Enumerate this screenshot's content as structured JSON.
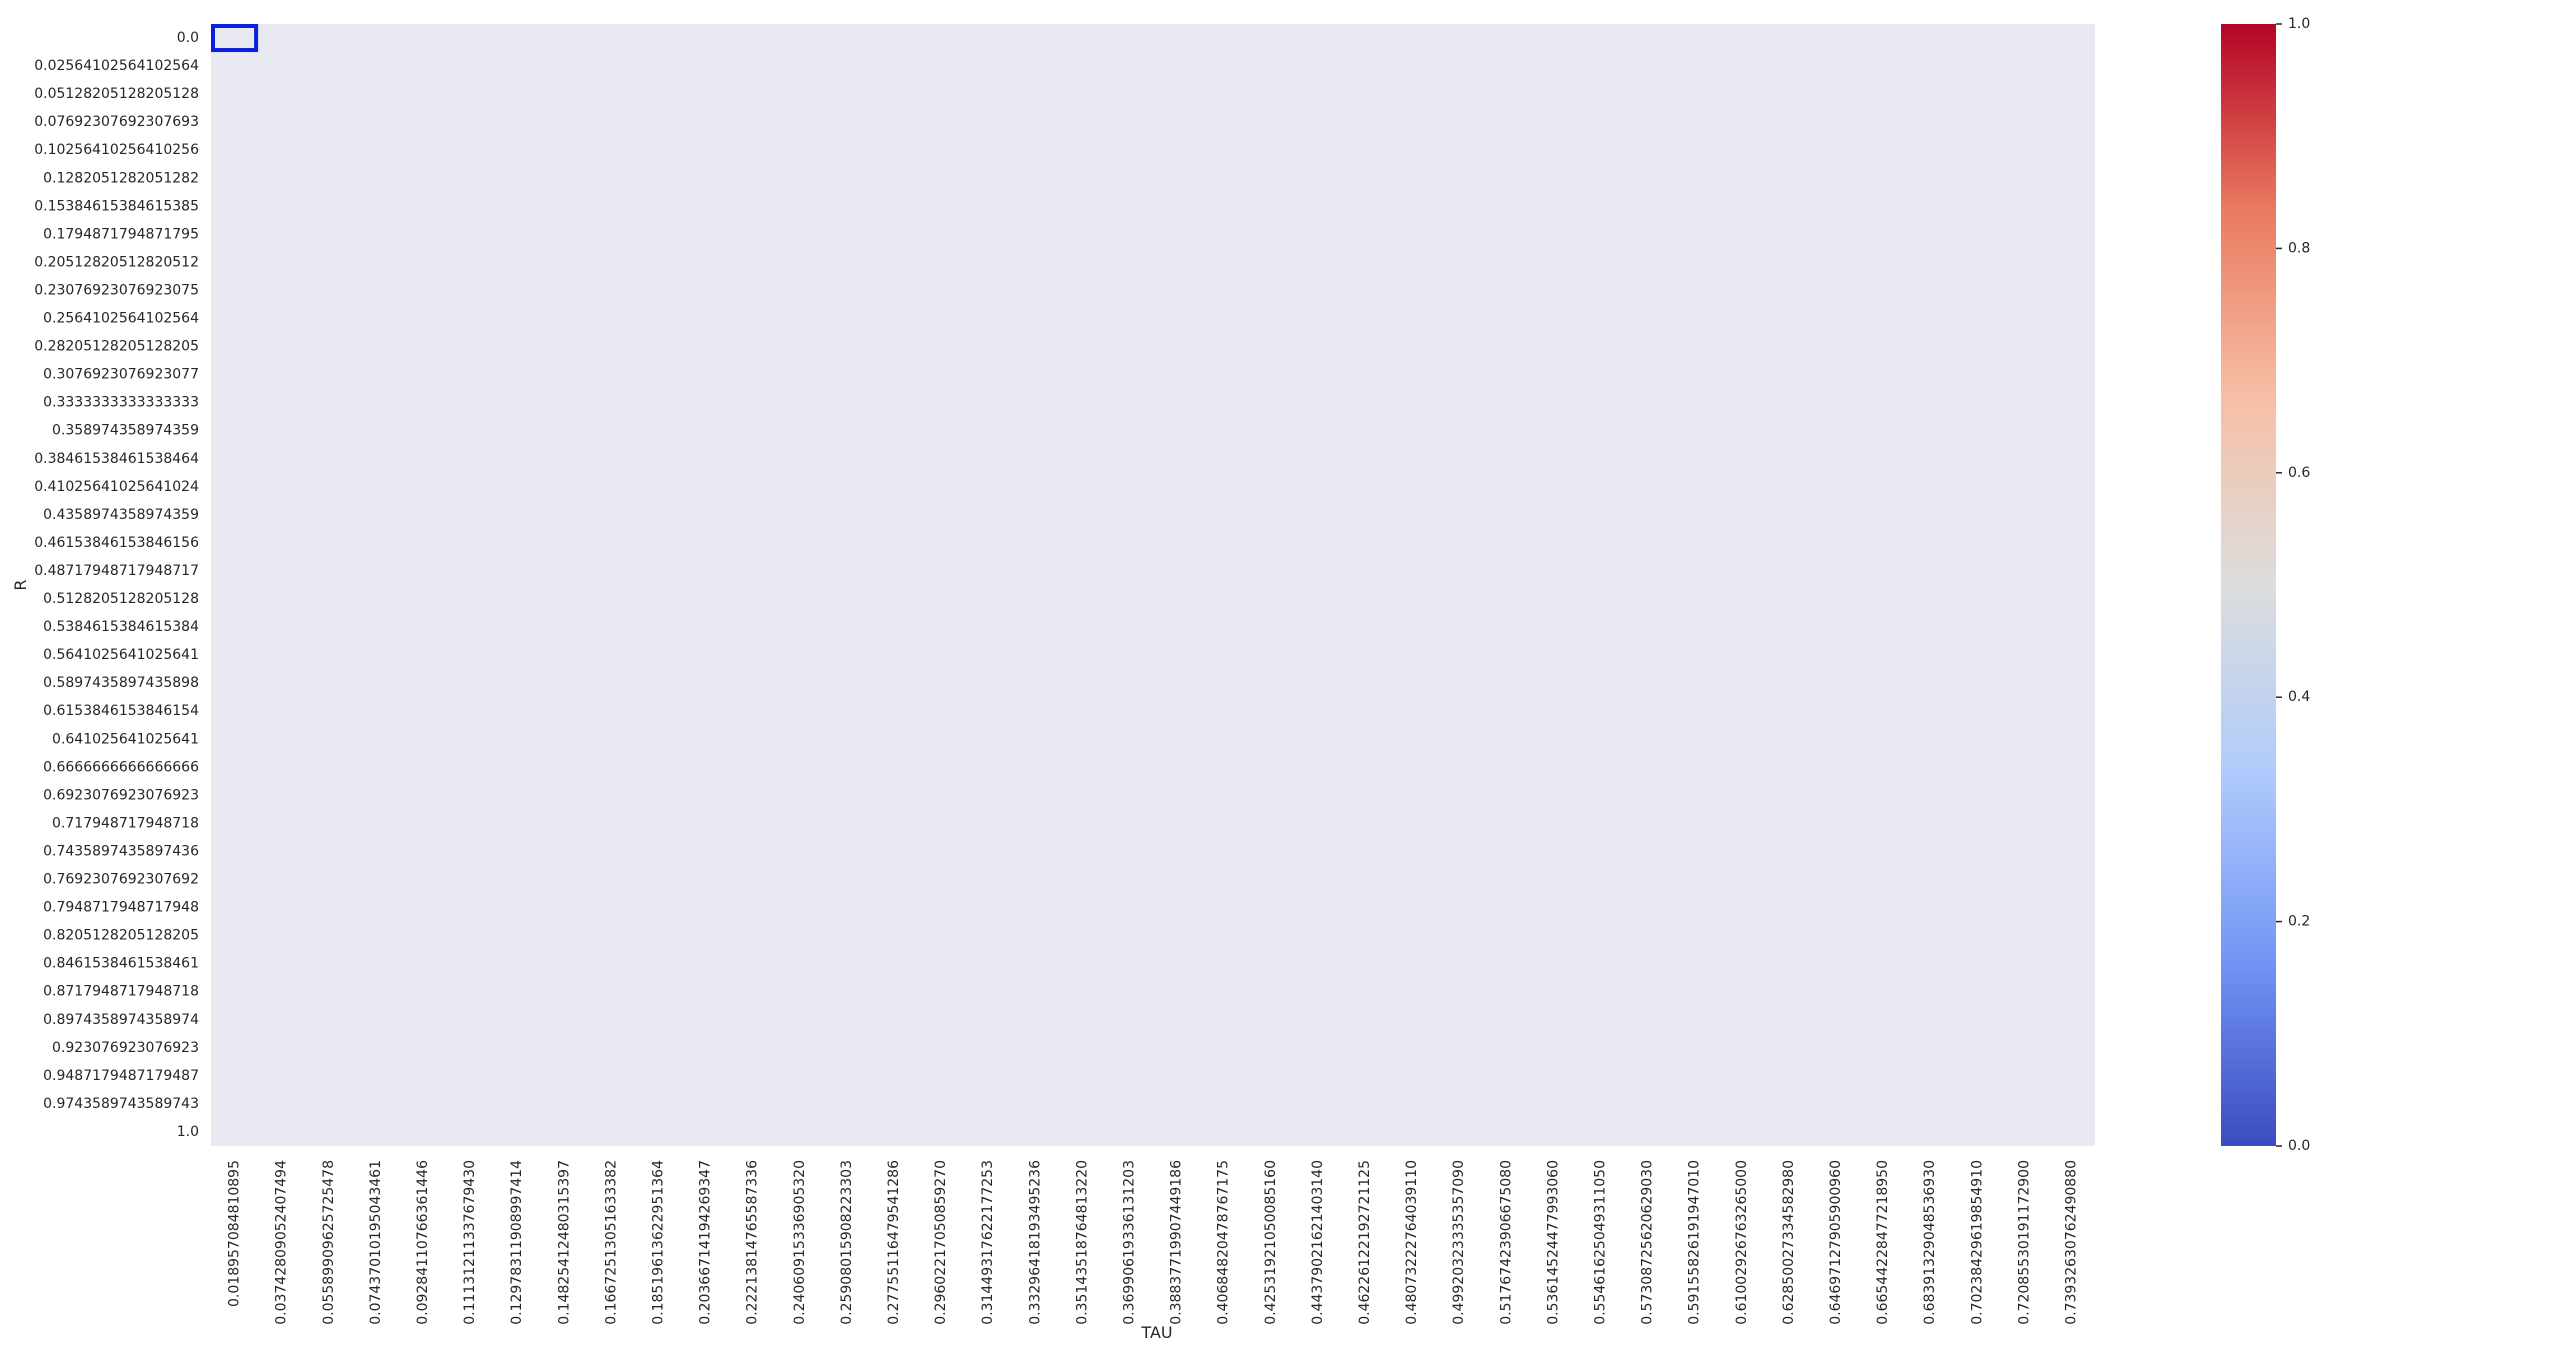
{
  "chart_data": {
    "type": "heatmap",
    "title": "",
    "xlabel": "TAU",
    "ylabel": "R",
    "x_tick_labels": [
      "0.018957084810895",
      "0.03742809052407494",
      "0.05589909625725478",
      "0.07437010195043461",
      "0.09284110766361446",
      "0.11131211337679430",
      "0.12978311908997414",
      "0.14825412480315397",
      "0.16672513051633382",
      "0.18519613622951364",
      "0.20366714194269347",
      "0.22213814765587336",
      "0.24060915336905320",
      "0.25908015908223303",
      "0.27755116479541286",
      "0.29602217050859270",
      "0.31449317622177253",
      "0.33296418193495236",
      "0.35143518764813220",
      "0.36990619336131203",
      "0.38837719907449186",
      "0.40684820478767175",
      "0.42531921050085160",
      "0.44379021621403140",
      "0.46226122192721125",
      "0.48073222764039110",
      "0.49920323335357090",
      "0.51767423906675080",
      "0.53614524477993060",
      "0.55461625049311050",
      "0.57308725620629030",
      "0.59155826191947010",
      "0.61002926763265000",
      "0.62850027334582980",
      "0.64697127905900960",
      "0.66544228477218950",
      "0.68391329048536930",
      "0.70238429619854910",
      "0.72085530191172900",
      "0.73932630762490880"
    ],
    "y_tick_labels": [
      "0.0",
      "0.02564102564102564",
      "0.05128205128205128",
      "0.07692307692307693",
      "0.10256410256410256",
      "0.1282051282051282",
      "0.15384615384615385",
      "0.1794871794871795",
      "0.20512820512820512",
      "0.23076923076923075",
      "0.2564102564102564",
      "0.28205128205128205",
      "0.3076923076923077",
      "0.3333333333333333",
      "0.358974358974359",
      "0.38461538461538464",
      "0.41025641025641024",
      "0.4358974358974359",
      "0.46153846153846156",
      "0.48717948717948717",
      "0.5128205128205128",
      "0.5384615384615384",
      "0.5641025641025641",
      "0.5897435897435898",
      "0.6153846153846154",
      "0.641025641025641",
      "0.6666666666666666",
      "0.6923076923076923",
      "0.717948717948718",
      "0.7435897435897436",
      "0.7692307692307692",
      "0.7948717948717948",
      "0.8205128205128205",
      "0.8461538461538461",
      "0.8717948717948718",
      "0.8974358974358974",
      "0.923076923076923",
      "0.9487179487179487",
      "0.9743589743589743",
      "1.0"
    ],
    "highlighted_cell": {
      "row": 0,
      "col": 0,
      "color": "#0a1fe0"
    },
    "background_color": "#e9e9f2",
    "colorbar": {
      "cmap": "coolwarm",
      "range": [
        0.0,
        1.0
      ],
      "tick_values": [
        0.0,
        0.2,
        0.4,
        0.6,
        0.8,
        1.0
      ],
      "tick_labels": [
        "0.0",
        "0.2",
        "0.4",
        "0.6",
        "0.8",
        "1.0"
      ],
      "colors": [
        "#3b4cc0",
        "#7396f5",
        "#b0cbfc",
        "#dcdddd",
        "#f6bfa6",
        "#ea7b60",
        "#b40426"
      ]
    },
    "grid": false
  }
}
